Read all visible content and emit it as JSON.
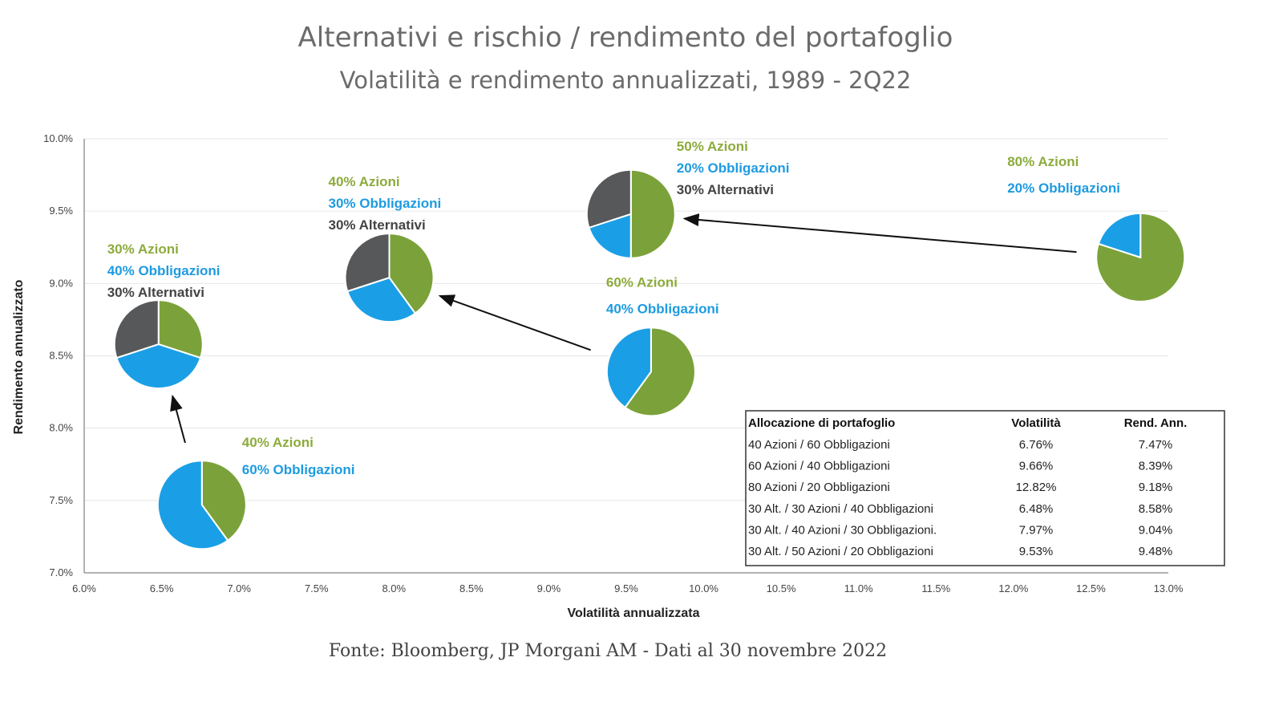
{
  "title": "Alternativi e rischio / rendimento del portafoglio",
  "subtitle": "Volatilità e rendimento annualizzati, 1989 - 2Q22",
  "footer": "Fonte: Bloomberg, JP Morgani AM - Dati al 30 novembre 2022",
  "colors": {
    "azioni": "#7ba23a",
    "obbligazioni": "#1a9fe6",
    "alternativi": "#56585a",
    "label_azioni": "#8cab3c",
    "label_obbligazioni": "#1e9be0",
    "label_alternativi": "#444444"
  },
  "chart_data": {
    "type": "scatter",
    "title": "Alternativi e rischio / rendimento del portafoglio",
    "xlabel": "Volatilità annualizzata",
    "ylabel": "Rendimento annualizzato",
    "xlim": [
      6.0,
      13.0
    ],
    "ylim": [
      7.0,
      10.0
    ],
    "xticks": [
      "6.0%",
      "6.5%",
      "7.0%",
      "7.5%",
      "8.0%",
      "8.5%",
      "9.0%",
      "9.5%",
      "10.0%",
      "10.5%",
      "11.0%",
      "11.5%",
      "12.0%",
      "12.5%",
      "13.0%"
    ],
    "yticks": [
      "7.0%",
      "7.5%",
      "8.0%",
      "8.5%",
      "9.0%",
      "9.5%",
      "10.0%"
    ],
    "grid": "horizontal",
    "points": [
      {
        "id": "p4060",
        "x": 6.76,
        "y": 7.47,
        "azioni": 40,
        "obbligazioni": 60,
        "alternativi": 0,
        "labels": [
          "40% Azioni",
          "60% Obbligazioni"
        ]
      },
      {
        "id": "p6040",
        "x": 9.66,
        "y": 8.39,
        "azioni": 60,
        "obbligazioni": 40,
        "alternativi": 0,
        "labels": [
          "60% Azioni",
          "40% Obbligazioni"
        ]
      },
      {
        "id": "p8020",
        "x": 12.82,
        "y": 9.18,
        "azioni": 80,
        "obbligazioni": 20,
        "alternativi": 0,
        "labels": [
          "80% Azioni",
          "20% Obbligazioni"
        ]
      },
      {
        "id": "a303040",
        "x": 6.48,
        "y": 8.58,
        "azioni": 30,
        "obbligazioni": 40,
        "alternativi": 30,
        "labels": [
          "30% Azioni",
          "40% Obbligazioni",
          "30% Alternativi"
        ]
      },
      {
        "id": "a304030",
        "x": 7.97,
        "y": 9.04,
        "azioni": 40,
        "obbligazioni": 30,
        "alternativi": 30,
        "labels": [
          "40% Azioni",
          "30% Obbligazioni",
          "30% Alternativi"
        ]
      },
      {
        "id": "a305020",
        "x": 9.53,
        "y": 9.48,
        "azioni": 50,
        "obbligazioni": 20,
        "alternativi": 30,
        "labels": [
          "50% Azioni",
          "20% Obbligazioni",
          "30% Alternativi"
        ]
      }
    ],
    "arrows": [
      [
        "p4060",
        "a303040"
      ],
      [
        "p6040",
        "a304030"
      ],
      [
        "p8020",
        "a305020"
      ]
    ],
    "table": {
      "headers": [
        "Allocazione di portafoglio",
        "Volatilità",
        "Rend. Ann."
      ],
      "rows": [
        [
          "40 Azioni / 60 Obbligazioni",
          "6.76%",
          "7.47%"
        ],
        [
          "60 Azioni / 40 Obbligazioni",
          "9.66%",
          "8.39%"
        ],
        [
          "80 Azioni / 20 Obbligazioni",
          "12.82%",
          "9.18%"
        ],
        [
          "30 Alt. / 30 Azioni / 40 Obbligazioni",
          "6.48%",
          "8.58%"
        ],
        [
          "30 Alt. / 40 Azioni / 30 Obbligazioni.",
          "7.97%",
          "9.04%"
        ],
        [
          "30 Alt. / 50 Azioni / 20 Obbligazioni",
          "9.53%",
          "9.48%"
        ]
      ]
    }
  }
}
